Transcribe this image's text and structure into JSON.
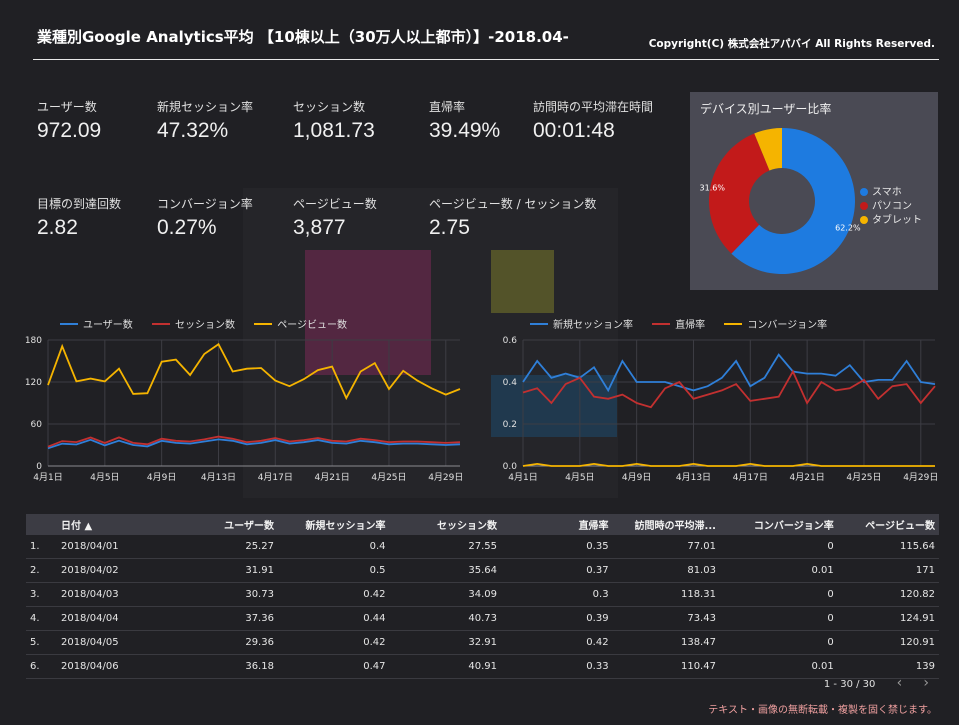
{
  "header": {
    "title": "業種別Google Analytics平均 【10棟以上（30万人以上都市）】-2018.04-",
    "copyright": "Copyright(C) 株式会社アパバイ All Rights Reserved."
  },
  "kpis": [
    {
      "label": "ユーザー数",
      "value": "972.09"
    },
    {
      "label": "新規セッション率",
      "value": "47.32%"
    },
    {
      "label": "セッション数",
      "value": "1,081.73"
    },
    {
      "label": "直帰率",
      "value": "39.49%"
    },
    {
      "label": "訪問時の平均滞在時間",
      "value": "00:01:48"
    },
    {
      "label": "目標の到達回数",
      "value": "2.82"
    },
    {
      "label": "コンバージョン率",
      "value": "0.27%"
    },
    {
      "label": "ページビュー数",
      "value": "3,877"
    },
    {
      "label": "ページビュー数 / セッション数",
      "value": "2.75"
    }
  ],
  "device_panel": {
    "title": "デバイス別ユーザー比率",
    "legend": [
      {
        "label": "スマホ",
        "color": "#1e7be0"
      },
      {
        "label": "パソコン",
        "color": "#c21a1a"
      },
      {
        "label": "タブレット",
        "color": "#f5b400"
      }
    ]
  },
  "chart_data": [
    {
      "type": "pie",
      "title": "デバイス別ユーザー比率",
      "labels": [
        "スマホ",
        "パソコン",
        "タブレット"
      ],
      "values": [
        62.2,
        31.6,
        6.2
      ],
      "value_labels": [
        "62.2%",
        "31.6%",
        ""
      ],
      "colors": [
        "#1e7be0",
        "#c21a1a",
        "#f5b400"
      ],
      "donut": true
    },
    {
      "type": "line",
      "x": [
        "4月1日",
        "4月2日",
        "4月3日",
        "4月4日",
        "4月5日",
        "4月6日",
        "4月7日",
        "4月8日",
        "4月9日",
        "4月10日",
        "4月11日",
        "4月12日",
        "4月13日",
        "4月14日",
        "4月15日",
        "4月16日",
        "4月17日",
        "4月18日",
        "4月19日",
        "4月20日",
        "4月21日",
        "4月22日",
        "4月23日",
        "4月24日",
        "4月25日",
        "4月26日",
        "4月27日",
        "4月28日",
        "4月29日",
        "4月30日"
      ],
      "x_ticks": [
        "4月1日",
        "4月5日",
        "4月9日",
        "4月13日",
        "4月17日",
        "4月21日",
        "4月25日",
        "4月29日"
      ],
      "ylim": [
        0,
        180
      ],
      "y_ticks": [
        0,
        60,
        120,
        180
      ],
      "grid": true,
      "legend_position": "top-left",
      "series": [
        {
          "name": "ユーザー数",
          "color": "#2f7fd8",
          "values": [
            25.27,
            31.91,
            30.73,
            37.36,
            29.36,
            36.18,
            30,
            28,
            36,
            33,
            32,
            35,
            38,
            36,
            31,
            33,
            37,
            32,
            34,
            37,
            33,
            32,
            36,
            34,
            31,
            32,
            32,
            31,
            30,
            31
          ]
        },
        {
          "name": "セッション数",
          "color": "#c23030",
          "values": [
            27.55,
            35.64,
            34.09,
            40.73,
            32.91,
            40.91,
            33,
            31,
            39,
            36,
            35,
            38,
            42,
            39,
            34,
            36,
            40,
            35,
            37,
            40,
            36,
            35,
            39,
            37,
            34,
            35,
            35,
            34,
            33,
            34
          ]
        },
        {
          "name": "ページビュー数",
          "color": "#f5b400",
          "values": [
            115.64,
            171,
            120.82,
            124.91,
            120.91,
            139,
            103,
            104,
            149,
            152,
            130,
            160,
            174,
            135,
            139,
            140,
            122,
            114,
            124,
            137,
            142,
            97,
            135,
            147,
            110,
            136,
            122,
            111,
            102,
            110
          ]
        }
      ]
    },
    {
      "type": "line",
      "x": [
        "4月1日",
        "4月2日",
        "4月3日",
        "4月4日",
        "4月5日",
        "4月6日",
        "4月7日",
        "4月8日",
        "4月9日",
        "4月10日",
        "4月11日",
        "4月12日",
        "4月13日",
        "4月14日",
        "4月15日",
        "4月16日",
        "4月17日",
        "4月18日",
        "4月19日",
        "4月20日",
        "4月21日",
        "4月22日",
        "4月23日",
        "4月24日",
        "4月25日",
        "4月26日",
        "4月27日",
        "4月28日",
        "4月29日",
        "4月30日"
      ],
      "x_ticks": [
        "4月1日",
        "4月5日",
        "4月9日",
        "4月13日",
        "4月17日",
        "4月21日",
        "4月25日",
        "4月29日"
      ],
      "ylim": [
        0,
        0.6
      ],
      "y_ticks": [
        0,
        0.2,
        0.4,
        0.6
      ],
      "grid": true,
      "legend_position": "top-left",
      "series": [
        {
          "name": "新規セッション率",
          "color": "#2f7fd8",
          "values": [
            0.4,
            0.5,
            0.42,
            0.44,
            0.42,
            0.47,
            0.36,
            0.5,
            0.4,
            0.4,
            0.4,
            0.38,
            0.36,
            0.38,
            0.42,
            0.5,
            0.38,
            0.42,
            0.53,
            0.45,
            0.44,
            0.44,
            0.43,
            0.48,
            0.4,
            0.41,
            0.41,
            0.5,
            0.4,
            0.39
          ]
        },
        {
          "name": "直帰率",
          "color": "#c23030",
          "values": [
            0.35,
            0.37,
            0.3,
            0.39,
            0.42,
            0.33,
            0.32,
            0.34,
            0.3,
            0.28,
            0.37,
            0.4,
            0.32,
            0.34,
            0.36,
            0.39,
            0.31,
            0.32,
            0.33,
            0.45,
            0.3,
            0.4,
            0.36,
            0.37,
            0.41,
            0.32,
            0.38,
            0.39,
            0.3,
            0.38
          ]
        },
        {
          "name": "コンバージョン率",
          "color": "#f5b400",
          "values": [
            0,
            0.01,
            0,
            0,
            0,
            0.01,
            0,
            0,
            0.01,
            0,
            0,
            0,
            0.01,
            0,
            0,
            0,
            0.01,
            0,
            0,
            0,
            0.01,
            0,
            0,
            0,
            0,
            0,
            0,
            0,
            0,
            0
          ]
        }
      ]
    }
  ],
  "table": {
    "headers": [
      "",
      "日付 ▲",
      "ユーザー数",
      "新規セッション率",
      "セッション数",
      "直帰率",
      "訪問時の平均滞...",
      "コンバージョン率",
      "ページビュー数"
    ],
    "rows": [
      [
        "1.",
        "2018/04/01",
        "25.27",
        "0.4",
        "27.55",
        "0.35",
        "77.01",
        "0",
        "115.64"
      ],
      [
        "2.",
        "2018/04/02",
        "31.91",
        "0.5",
        "35.64",
        "0.37",
        "81.03",
        "0.01",
        "171"
      ],
      [
        "3.",
        "2018/04/03",
        "30.73",
        "0.42",
        "34.09",
        "0.3",
        "118.31",
        "0",
        "120.82"
      ],
      [
        "4.",
        "2018/04/04",
        "37.36",
        "0.44",
        "40.73",
        "0.39",
        "73.43",
        "0",
        "124.91"
      ],
      [
        "5.",
        "2018/04/05",
        "29.36",
        "0.42",
        "32.91",
        "0.42",
        "138.47",
        "0",
        "120.91"
      ],
      [
        "6.",
        "2018/04/06",
        "36.18",
        "0.47",
        "40.91",
        "0.33",
        "110.47",
        "0.01",
        "139"
      ]
    ]
  },
  "pager": {
    "text": "1 - 30 / 30",
    "prev": "‹",
    "next": "›"
  },
  "notice": "テキスト・画像の無断転載・複製を固く禁じます。"
}
